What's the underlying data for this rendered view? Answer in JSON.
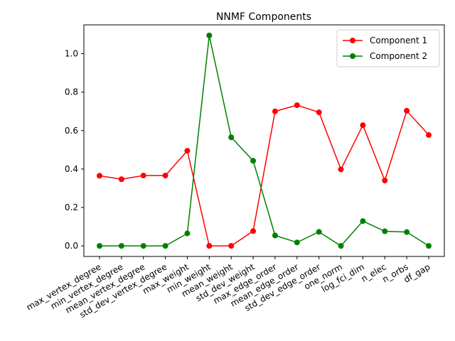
{
  "chart_data": {
    "type": "line",
    "title": "NNMF Components",
    "xlabel": "",
    "ylabel": "",
    "categories": [
      "max_vertex_degree",
      "min_vertex_degree",
      "mean_vertex_degree",
      "std_dev_vertex_degree",
      "max_weight",
      "min_weight",
      "mean_weight",
      "std_dev_weight",
      "max_edge_order",
      "mean_edge_order",
      "std_dev_edge_order",
      "one_norm",
      "log_fci_dim",
      "n_elec",
      "n_orbs",
      "df_gap"
    ],
    "ylim": [
      -0.055,
      1.15
    ],
    "yticks": [
      0.0,
      0.2,
      0.4,
      0.6,
      0.8,
      1.0
    ],
    "ytick_labels": [
      "0.0",
      "0.2",
      "0.4",
      "0.6",
      "0.8",
      "1.0"
    ],
    "grid": false,
    "legend_position": "top-right",
    "series": [
      {
        "name": "Component 1",
        "color": "#ff0000",
        "values": [
          0.365,
          0.347,
          0.366,
          0.366,
          0.495,
          0.0,
          0.0,
          0.077,
          0.7,
          0.732,
          0.695,
          0.398,
          0.628,
          0.34,
          0.703,
          0.577
        ]
      },
      {
        "name": "Component 2",
        "color": "#008000",
        "values": [
          0.0,
          0.0,
          0.0,
          0.0,
          0.065,
          1.095,
          0.565,
          0.443,
          0.054,
          0.018,
          0.073,
          0.0,
          0.129,
          0.076,
          0.072,
          0.0
        ]
      }
    ]
  }
}
